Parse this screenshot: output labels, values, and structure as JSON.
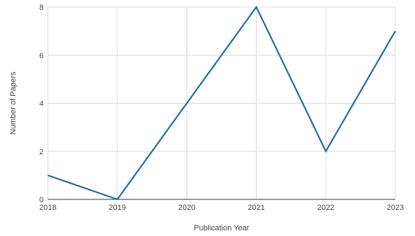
{
  "chart_data": {
    "type": "line",
    "title": "",
    "xlabel": "Publication Year",
    "ylabel": "Number of Papers",
    "x": [
      "2018",
      "2019",
      "2020",
      "2021",
      "2022",
      "2023"
    ],
    "series": [
      {
        "values": [
          1,
          0,
          4,
          8,
          2,
          7
        ],
        "color": "#1f6e95"
      }
    ],
    "ylim": [
      0,
      8
    ],
    "yticks": [
      "0",
      "2",
      "4",
      "6",
      "8"
    ],
    "grid": true,
    "legend": "none"
  }
}
